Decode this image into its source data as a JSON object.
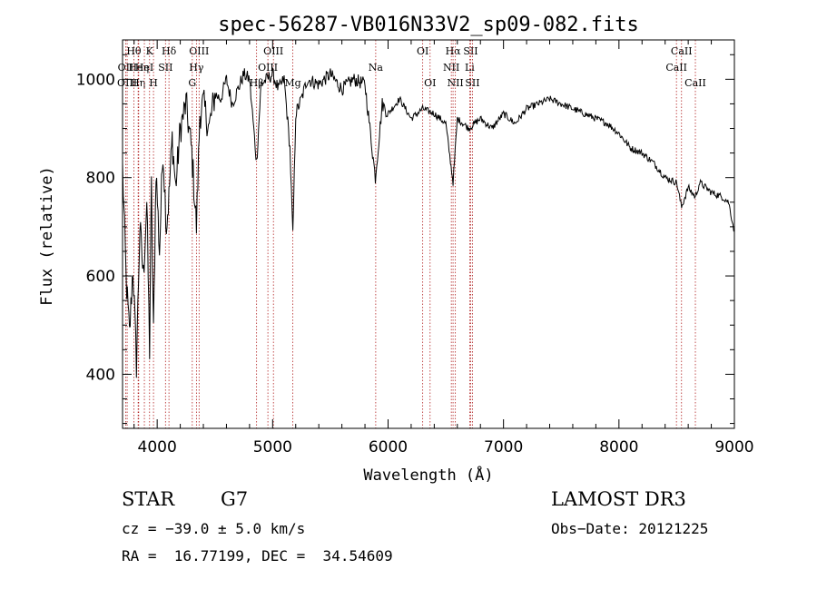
{
  "chart_data": {
    "type": "line",
    "title": "spec-56287-VB016N33V2_sp09-082.fits",
    "xlabel": "Wavelength (Å)",
    "ylabel": "Flux (relative)",
    "xlim": [
      3700,
      9000
    ],
    "ylim": [
      290,
      1080
    ],
    "x_ticks": [
      4000,
      5000,
      6000,
      7000,
      8000,
      9000
    ],
    "x_tick_labels": [
      "4000",
      "5000",
      "6000",
      "7000",
      "8000",
      "9000"
    ],
    "y_ticks": [
      400,
      600,
      800,
      1000
    ],
    "y_tick_labels": [
      "400",
      "600",
      "800",
      "1000"
    ],
    "grid": false,
    "series": [
      {
        "name": "flux",
        "x": [
          3700,
          3730,
          3760,
          3790,
          3820,
          3850,
          3880,
          3910,
          3934,
          3950,
          3968,
          3990,
          4020,
          4050,
          4080,
          4102,
          4130,
          4160,
          4200,
          4250,
          4300,
          4340,
          4370,
          4400,
          4450,
          4500,
          4550,
          4600,
          4650,
          4700,
          4750,
          4800,
          4861,
          4900,
          4950,
          5000,
          5050,
          5100,
          5150,
          5175,
          5200,
          5250,
          5300,
          5400,
          5500,
          5600,
          5700,
          5800,
          5890,
          5950,
          6000,
          6100,
          6200,
          6300,
          6400,
          6500,
          6563,
          6600,
          6700,
          6800,
          6900,
          7000,
          7100,
          7200,
          7300,
          7400,
          7500,
          7600,
          7700,
          7800,
          7900,
          8000,
          8100,
          8200,
          8300,
          8400,
          8500,
          8542,
          8600,
          8662,
          8700,
          8800,
          8900,
          8950,
          9000
        ],
        "values": [
          820,
          600,
          480,
          620,
          420,
          700,
          600,
          750,
          450,
          780,
          480,
          820,
          650,
          860,
          700,
          760,
          880,
          780,
          900,
          950,
          850,
          700,
          930,
          950,
          900,
          970,
          960,
          1000,
          950,
          980,
          1010,
          1000,
          830,
          990,
          1000,
          1010,
          980,
          1000,
          860,
          680,
          930,
          960,
          1000,
          990,
          1010,
          980,
          1000,
          990,
          800,
          950,
          930,
          960,
          920,
          940,
          930,
          910,
          790,
          920,
          900,
          920,
          900,
          930,
          910,
          940,
          950,
          960,
          950,
          940,
          930,
          920,
          910,
          890,
          860,
          850,
          830,
          800,
          790,
          740,
          780,
          760,
          790,
          770,
          760,
          750,
          690
        ]
      }
    ],
    "line_markers": [
      {
        "label": "Hθ",
        "x": 3798,
        "row": 1
      },
      {
        "label": "OII",
        "x": 3727,
        "row": 2
      },
      {
        "label": "OIII",
        "x": 3740,
        "row": 3
      },
      {
        "label": "Heη",
        "x": 3840,
        "row": 2
      },
      {
        "label": "Hη",
        "x": 3835,
        "row": 3
      },
      {
        "label": "K",
        "x": 3934,
        "row": 1
      },
      {
        "label": "HeI",
        "x": 3889,
        "row": 2
      },
      {
        "label": "H",
        "x": 3968,
        "row": 3
      },
      {
        "label": "Hδ",
        "x": 4102,
        "row": 1
      },
      {
        "label": "SII",
        "x": 4072,
        "row": 2
      },
      {
        "label": "OIII",
        "x": 4363,
        "row": 1
      },
      {
        "label": "Hγ",
        "x": 4340,
        "row": 2
      },
      {
        "label": "G",
        "x": 4304,
        "row": 3
      },
      {
        "label": "OIII",
        "x": 5007,
        "row": 1
      },
      {
        "label": "OIII",
        "x": 4959,
        "row": 2
      },
      {
        "label": "Hβ",
        "x": 4861,
        "row": 3
      },
      {
        "label": "Mg",
        "x": 5175,
        "row": 3
      },
      {
        "label": "Na",
        "x": 5893,
        "row": 2
      },
      {
        "label": "OI",
        "x": 6300,
        "row": 1
      },
      {
        "label": "OI",
        "x": 6364,
        "row": 3
      },
      {
        "label": "Hα",
        "x": 6563,
        "row": 1
      },
      {
        "label": "NII",
        "x": 6548,
        "row": 2
      },
      {
        "label": "NII",
        "x": 6583,
        "row": 3
      },
      {
        "label": "SII",
        "x": 6716,
        "row": 1
      },
      {
        "label": "Li",
        "x": 6707,
        "row": 2
      },
      {
        "label": "SII",
        "x": 6731,
        "row": 3
      },
      {
        "label": "CaII",
        "x": 8542,
        "row": 1
      },
      {
        "label": "CaII",
        "x": 8498,
        "row": 2
      },
      {
        "label": "CaII",
        "x": 8662,
        "row": 3
      }
    ],
    "marker_color": "#b22222"
  },
  "info": {
    "object_class": "STAR",
    "subclass": "G7",
    "survey": "LAMOST DR3",
    "redshift": "cz = −39.0 ± 5.0 km/s",
    "obs_date": "Obs−Date: 20121225",
    "coords": "RA =  16.77199, DEC =  34.54609"
  }
}
